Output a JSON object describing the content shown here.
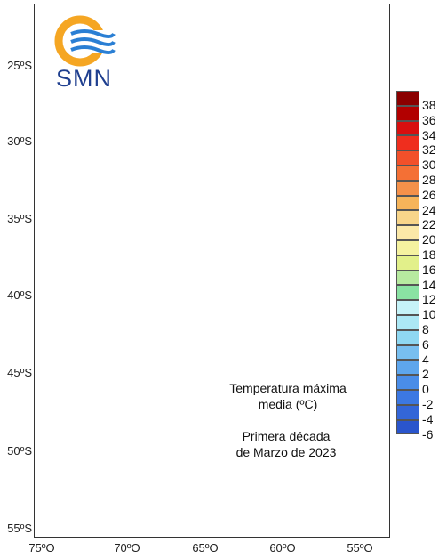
{
  "logo": {
    "text": "SMN"
  },
  "title": {
    "line1": "Temperatura máxima",
    "line2": "media (ºC)"
  },
  "period": {
    "line1": "Primera década",
    "line2": "de Marzo de 2023"
  },
  "y_ticks": [
    "25ºS",
    "30ºS",
    "35ºS",
    "40ºS",
    "45ºS",
    "50ºS",
    "55ºS"
  ],
  "x_ticks": [
    "75ºO",
    "70ºO",
    "65ºO",
    "60ºO",
    "55ºO"
  ],
  "legend": [
    {
      "label": "38",
      "color": "#8b0000"
    },
    {
      "label": "36",
      "color": "#b20000"
    },
    {
      "label": "34",
      "color": "#d80f0f"
    },
    {
      "label": "32",
      "color": "#ef2e1e"
    },
    {
      "label": "30",
      "color": "#f2502a"
    },
    {
      "label": "28",
      "color": "#f47035"
    },
    {
      "label": "26",
      "color": "#f5914a"
    },
    {
      "label": "24",
      "color": "#f6b45a"
    },
    {
      "label": "22",
      "color": "#f8d58a"
    },
    {
      "label": "20",
      "color": "#fbe8a8"
    },
    {
      "label": "18",
      "color": "#f5f2a0"
    },
    {
      "label": "16",
      "color": "#e2f08a"
    },
    {
      "label": "14",
      "color": "#b7eaa0"
    },
    {
      "label": "12",
      "color": "#8ae2a3"
    },
    {
      "label": "10",
      "color": "#c6f3f8"
    },
    {
      "label": "8",
      "color": "#ace8f5"
    },
    {
      "label": "6",
      "color": "#8fd8f2"
    },
    {
      "label": "4",
      "color": "#78bff0"
    },
    {
      "label": "2",
      "color": "#5ea6ed"
    },
    {
      "label": "0",
      "color": "#4a8de8"
    },
    {
      "label": "-2",
      "color": "#3c78e2"
    },
    {
      "label": "-4",
      "color": "#3366d8"
    },
    {
      "label": "-6",
      "color": "#2a55cc"
    }
  ],
  "colors": {
    "logo_orange": "#f5a623",
    "logo_blue": "#2a7fd4",
    "andes_gray": "#9a9a9a"
  }
}
